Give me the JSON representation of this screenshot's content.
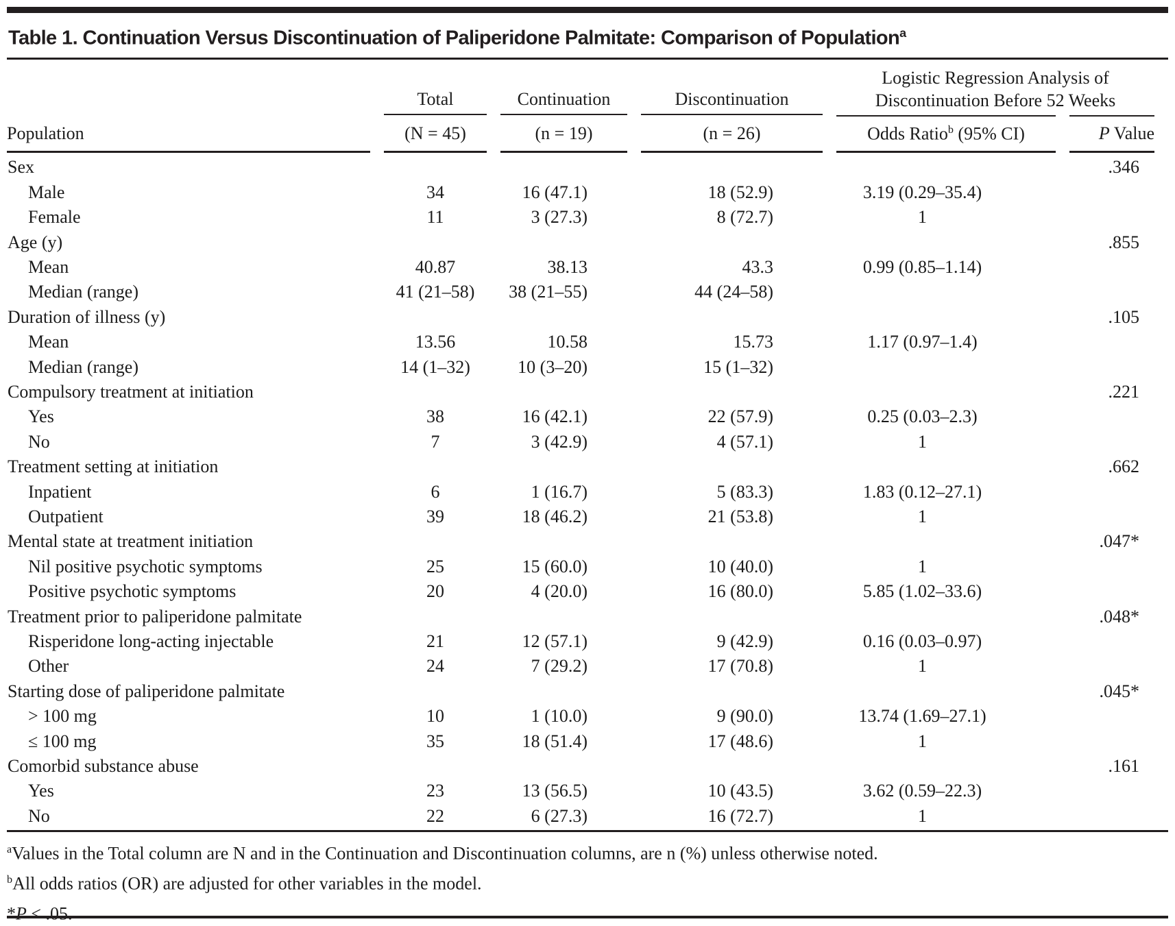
{
  "title": {
    "label": "Table 1. Continuation Versus Discontinuation of Paliperidone Palmitate: Comparison of Population",
    "superscript": "a"
  },
  "header": {
    "stub_label": "Population",
    "total_label": "Total",
    "total_sub": "(N = 45)",
    "continuation_label": "Continuation",
    "continuation_sub": "(n = 19)",
    "discontinuation_label": "Discontinuation",
    "discontinuation_sub": "(n = 26)",
    "logistic_label": "Logistic Regression Analysis of Discontinuation Before 52 Weeks",
    "odds_ratio_label": "Odds Ratio",
    "odds_ratio_superscript": "b",
    "odds_ratio_ci": " (95% CI)",
    "p_value_italic": "P",
    "p_value_rest": " Value"
  },
  "rows": [
    {
      "label": "Sex",
      "indent": false,
      "total": "",
      "continuation": "",
      "discontinuation": "",
      "odds_ratio": "",
      "p_value": ".346"
    },
    {
      "label": "Male",
      "indent": true,
      "total": "34",
      "continuation": "16 (47.1)",
      "discontinuation": "18 (52.9)",
      "odds_ratio": "3.19 (0.29–35.4)",
      "p_value": ""
    },
    {
      "label": "Female",
      "indent": true,
      "total": "11",
      "continuation": "3 (27.3)",
      "discontinuation": "8 (72.7)",
      "odds_ratio": "1",
      "p_value": ""
    },
    {
      "label": "Age (y)",
      "indent": false,
      "total": "",
      "continuation": "",
      "discontinuation": "",
      "odds_ratio": "",
      "p_value": ".855"
    },
    {
      "label": "Mean",
      "indent": true,
      "total": "40.87",
      "continuation": "38.13",
      "discontinuation": "43.3",
      "odds_ratio": "0.99 (0.85–1.14)",
      "p_value": ""
    },
    {
      "label": "Median (range)",
      "indent": true,
      "total": "41 (21–58)",
      "continuation": "38 (21–55)",
      "discontinuation": "44 (24–58)",
      "odds_ratio": "",
      "p_value": ""
    },
    {
      "label": "Duration of illness (y)",
      "indent": false,
      "total": "",
      "continuation": "",
      "discontinuation": "",
      "odds_ratio": "",
      "p_value": ".105"
    },
    {
      "label": "Mean",
      "indent": true,
      "total": "13.56",
      "continuation": "10.58",
      "discontinuation": "15.73",
      "odds_ratio": "1.17 (0.97–1.4)",
      "p_value": ""
    },
    {
      "label": "Median (range)",
      "indent": true,
      "total": "14 (1–32)",
      "continuation": "10 (3–20)",
      "discontinuation": "15 (1–32)",
      "odds_ratio": "",
      "p_value": ""
    },
    {
      "label": "Compulsory treatment at initiation",
      "indent": false,
      "total": "",
      "continuation": "",
      "discontinuation": "",
      "odds_ratio": "",
      "p_value": ".221"
    },
    {
      "label": "Yes",
      "indent": true,
      "total": "38",
      "continuation": "16 (42.1)",
      "discontinuation": "22 (57.9)",
      "odds_ratio": "0.25 (0.03–2.3)",
      "p_value": ""
    },
    {
      "label": "No",
      "indent": true,
      "total": "7",
      "continuation": "3 (42.9)",
      "discontinuation": "4 (57.1)",
      "odds_ratio": "1",
      "p_value": ""
    },
    {
      "label": "Treatment setting at initiation",
      "indent": false,
      "total": "",
      "continuation": "",
      "discontinuation": "",
      "odds_ratio": "",
      "p_value": ".662"
    },
    {
      "label": "Inpatient",
      "indent": true,
      "total": "6",
      "continuation": "1 (16.7)",
      "discontinuation": "5 (83.3)",
      "odds_ratio": "1.83 (0.12–27.1)",
      "p_value": ""
    },
    {
      "label": "Outpatient",
      "indent": true,
      "total": "39",
      "continuation": "18 (46.2)",
      "discontinuation": "21 (53.8)",
      "odds_ratio": "1",
      "p_value": ""
    },
    {
      "label": "Mental state at treatment initiation",
      "indent": false,
      "total": "",
      "continuation": "",
      "discontinuation": "",
      "odds_ratio": "",
      "p_value": ".047*"
    },
    {
      "label": "Nil positive psychotic symptoms",
      "indent": true,
      "total": "25",
      "continuation": "15 (60.0)",
      "discontinuation": "10 (40.0)",
      "odds_ratio": "1",
      "p_value": ""
    },
    {
      "label": "Positive psychotic symptoms",
      "indent": true,
      "total": "20",
      "continuation": "4 (20.0)",
      "discontinuation": "16 (80.0)",
      "odds_ratio": "5.85 (1.02–33.6)",
      "p_value": ""
    },
    {
      "label": "Treatment prior to paliperidone palmitate",
      "indent": false,
      "total": "",
      "continuation": "",
      "discontinuation": "",
      "odds_ratio": "",
      "p_value": ".048*"
    },
    {
      "label": "Risperidone long-acting injectable",
      "indent": true,
      "total": "21",
      "continuation": "12 (57.1)",
      "discontinuation": "9 (42.9)",
      "odds_ratio": "0.16 (0.03–0.97)",
      "p_value": ""
    },
    {
      "label": "Other",
      "indent": true,
      "total": "24",
      "continuation": "7 (29.2)",
      "discontinuation": "17 (70.8)",
      "odds_ratio": "1",
      "p_value": ""
    },
    {
      "label": "Starting dose of paliperidone palmitate",
      "indent": false,
      "total": "",
      "continuation": "",
      "discontinuation": "",
      "odds_ratio": "",
      "p_value": ".045*"
    },
    {
      "label": "> 100 mg",
      "indent": true,
      "total": "10",
      "continuation": "1 (10.0)",
      "discontinuation": "9 (90.0)",
      "odds_ratio": "13.74 (1.69–27.1)",
      "p_value": ""
    },
    {
      "label": "≤ 100 mg",
      "indent": true,
      "total": "35",
      "continuation": "18 (51.4)",
      "discontinuation": "17 (48.6)",
      "odds_ratio": "1",
      "p_value": ""
    },
    {
      "label": "Comorbid substance abuse",
      "indent": false,
      "total": "",
      "continuation": "",
      "discontinuation": "",
      "odds_ratio": "",
      "p_value": ".161"
    },
    {
      "label": "Yes",
      "indent": true,
      "total": "23",
      "continuation": "13 (56.5)",
      "discontinuation": "10 (43.5)",
      "odds_ratio": "3.62 (0.59–22.3)",
      "p_value": ""
    },
    {
      "label": "No",
      "indent": true,
      "total": "22",
      "continuation": "6 (27.3)",
      "discontinuation": "16 (72.7)",
      "odds_ratio": "1",
      "p_value": ""
    }
  ],
  "footnotes": [
    {
      "sup": "a",
      "pre": "",
      "italic": "",
      "text": "Values in the Total column are N and in the Continuation and Discontinuation columns, are n (%) unless otherwise noted."
    },
    {
      "sup": "b",
      "pre": "",
      "italic": "",
      "text": "All odds ratios (OR) are adjusted for other variables in the model."
    },
    {
      "sup": "",
      "pre": "*",
      "italic": "P",
      "text": " < .05."
    }
  ],
  "colors": {
    "rule": "#221e1f",
    "text": "#1b1b1b",
    "background": "#ffffff"
  }
}
